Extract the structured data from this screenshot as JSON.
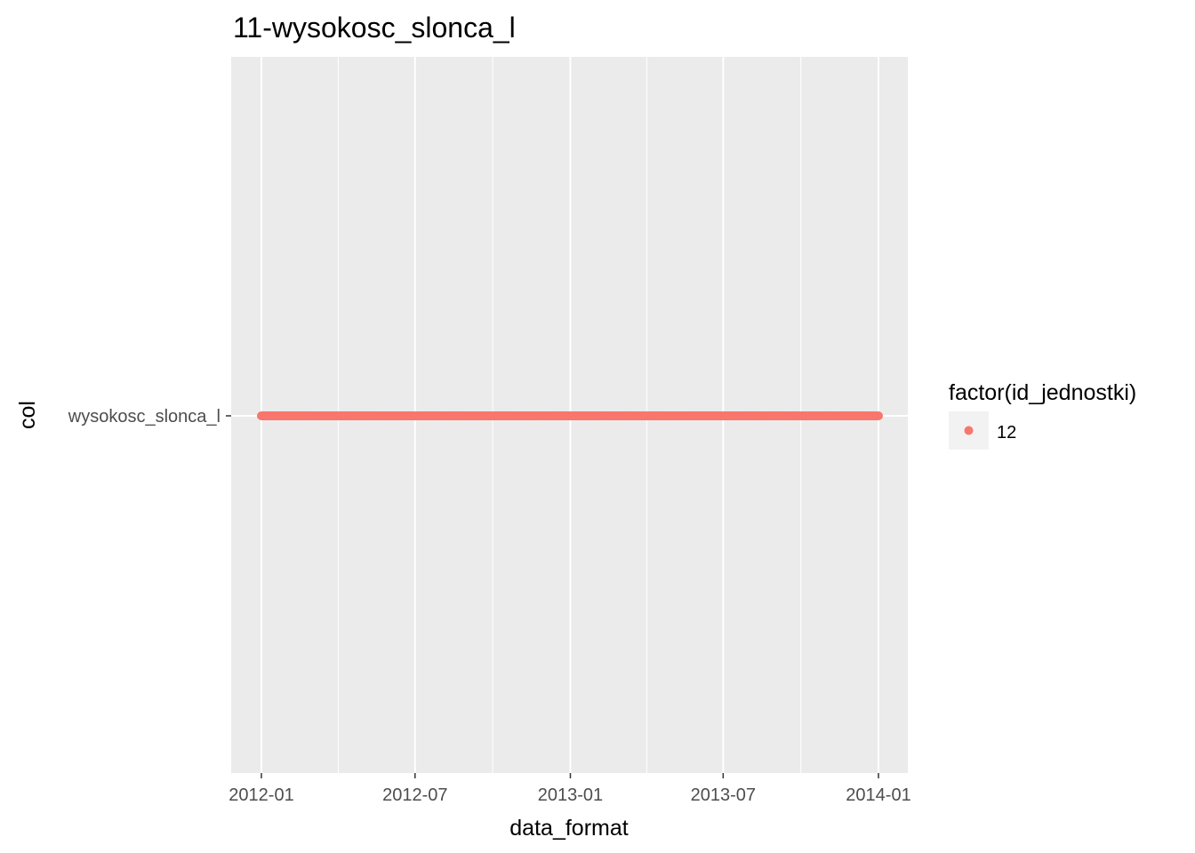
{
  "chart_data": {
    "type": "scatter",
    "title": "11-wysokosc_slonca_l",
    "xlabel": "data_format",
    "ylabel": "col",
    "x_range": [
      "2012-01-01",
      "2014-01-01"
    ],
    "x_ticks": [
      "2012-01",
      "2012-07",
      "2013-01",
      "2013-07",
      "2014-01"
    ],
    "y_categories": [
      "wysokosc_slonca_l"
    ],
    "grid": true,
    "legend": {
      "title": "factor(id_jednostki)",
      "position": "right",
      "entries": [
        {
          "label": "12",
          "color": "#F8766D"
        }
      ]
    },
    "series": [
      {
        "name": "12",
        "color": "#F8766D",
        "y": "wysokosc_slonca_l",
        "x_start": "2012-01-01",
        "x_end": "2014-01-01",
        "frequency": "daily"
      }
    ]
  },
  "colors": {
    "panel_background": "#EBEBEB",
    "grid_major": "#FFFFFF",
    "point": "#F8766D"
  }
}
